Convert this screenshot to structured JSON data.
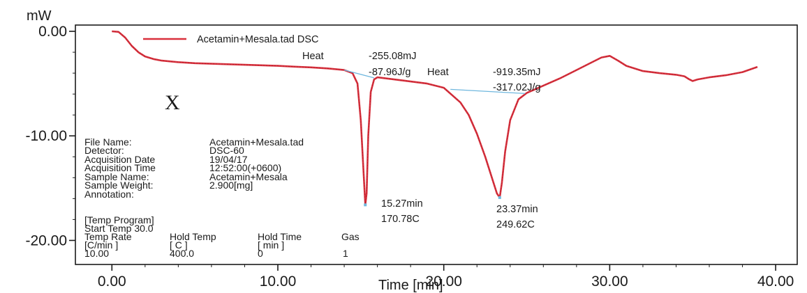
{
  "chart_data": {
    "type": "line",
    "title": "",
    "xlabel": "Time  [min]",
    "ylabel": "mW",
    "xlim": [
      -2.2,
      41.3
    ],
    "ylim": [
      -22.3,
      0.6
    ],
    "grid": false,
    "legend": {
      "position": "top-left",
      "entries": [
        "Acetamin+Mesala.tad  DSC"
      ]
    },
    "x_ticks": [
      {
        "value": 0,
        "label": "0.00"
      },
      {
        "value": 10,
        "label": "10.00"
      },
      {
        "value": 20,
        "label": "20.00"
      },
      {
        "value": 30,
        "label": "30.00"
      },
      {
        "value": 40,
        "label": "40.00"
      }
    ],
    "y_ticks": [
      {
        "value": 0,
        "label": "0.00"
      },
      {
        "value": -10,
        "label": "-10.00"
      },
      {
        "value": -20,
        "label": "-20.00"
      }
    ],
    "series": [
      {
        "name": "Acetamin+Mesala.tad  DSC",
        "color": "#d9303c",
        "x": [
          0.0,
          0.4,
          0.8,
          1.2,
          1.6,
          2.0,
          2.5,
          3.0,
          4.0,
          5.0,
          6.0,
          7.0,
          8.0,
          9.0,
          10.0,
          11.0,
          12.0,
          13.0,
          14.0,
          14.5,
          14.8,
          15.0,
          15.1,
          15.2,
          15.27,
          15.35,
          15.45,
          15.6,
          15.8,
          16.0,
          16.5,
          17.0,
          18.0,
          19.0,
          20.0,
          21.0,
          21.5,
          22.0,
          22.5,
          23.0,
          23.2,
          23.37,
          23.5,
          23.7,
          24.0,
          24.5,
          25.0,
          26.0,
          27.0,
          28.0,
          29.0,
          29.5,
          30.0,
          30.5,
          31.0,
          32.0,
          33.0,
          34.0,
          34.5,
          34.8,
          35.0,
          35.3,
          36.0,
          37.0,
          38.0,
          38.9
        ],
        "y": [
          0.0,
          -0.05,
          -0.6,
          -1.4,
          -2.0,
          -2.4,
          -2.65,
          -2.8,
          -2.95,
          -3.05,
          -3.1,
          -3.15,
          -3.2,
          -3.25,
          -3.3,
          -3.38,
          -3.45,
          -3.55,
          -3.7,
          -4.0,
          -5.0,
          -8.5,
          -11.5,
          -14.5,
          -16.6,
          -15.5,
          -10.0,
          -5.8,
          -4.6,
          -4.4,
          -4.5,
          -4.6,
          -4.8,
          -5.0,
          -5.4,
          -6.8,
          -8.0,
          -9.8,
          -12.0,
          -14.5,
          -15.5,
          -15.9,
          -14.5,
          -11.5,
          -8.5,
          -6.5,
          -5.9,
          -5.2,
          -4.5,
          -3.7,
          -2.9,
          -2.5,
          -2.35,
          -2.8,
          -3.3,
          -3.8,
          -4.0,
          -4.15,
          -4.3,
          -4.6,
          -4.75,
          -4.6,
          -4.4,
          -4.2,
          -3.9,
          -3.4
        ]
      }
    ],
    "baselines": [
      {
        "x": [
          14.0,
          15.8
        ],
        "y": [
          -3.7,
          -4.45
        ]
      },
      {
        "x": [
          20.4,
          24.9
        ],
        "y": [
          -5.55,
          -5.95
        ]
      }
    ],
    "peak_markers": [
      {
        "x": 15.27,
        "y": -16.6
      },
      {
        "x": 23.37,
        "y": -15.9
      }
    ],
    "annotations": {
      "peak1_heat_label": "Heat",
      "peak1_energy": "-255.08mJ",
      "peak1_specific": "-87.96J/g",
      "peak1_time": "15.27min",
      "peak1_temp": "170.78C",
      "peak2_heat_label": "Heat",
      "peak2_energy": "-919.35mJ",
      "peak2_specific": "-317.02J/g",
      "peak2_time": "23.37min",
      "peak2_temp": "249.62C",
      "mark_x": "X"
    }
  },
  "info": {
    "file_name_label": "File Name:",
    "file_name_value": "Acetamin+Mesala.tad",
    "detector_label": "Detector:",
    "detector_value": "DSC-60",
    "acq_date_label": "Acquisition Date",
    "acq_date_value": "19/04/17",
    "acq_time_label": "Acquisition Time",
    "acq_time_value": "12:52:00(+0600)",
    "sample_name_label": "Sample Name:",
    "sample_name_value": "Acetamin+Mesala",
    "sample_weight_label": "Sample Weight:",
    "sample_weight_value": "2.900[mg]",
    "annotation_label": "Annotation:",
    "temp_program": "[Temp Program]",
    "start_temp": "Start Temp  30.0",
    "hdr_rate": "Temp Rate",
    "hdr_hold_temp": "Hold Temp",
    "hdr_hold_time": "Hold Time",
    "hdr_gas": "Gas",
    "unit_rate": "[C/min ]",
    "unit_hold_temp": "[  C  ]",
    "unit_hold_time": "[  min  ]",
    "val_rate": "10.00",
    "val_hold_temp": "400.0",
    "val_hold_time": "0",
    "val_gas": "1"
  }
}
